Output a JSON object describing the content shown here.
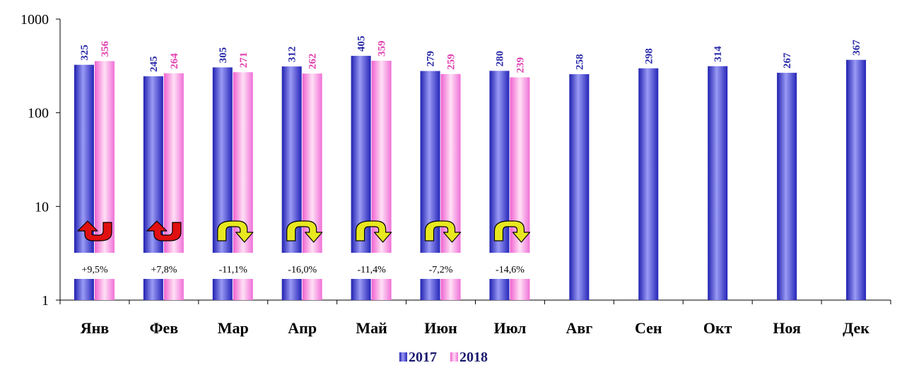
{
  "chart_data": {
    "type": "bar",
    "y_scale": "log",
    "ylim": [
      1,
      1000
    ],
    "y_ticks": [
      "1",
      "10",
      "100",
      "1000"
    ],
    "categories": [
      "Янв",
      "Фев",
      "Мар",
      "Апр",
      "Май",
      "Июн",
      "Июл",
      "Авг",
      "Сен",
      "Окт",
      "Ноя",
      "Дек"
    ],
    "series": [
      {
        "name": "2017",
        "color": "#3a3adf",
        "values": [
          325,
          245,
          305,
          312,
          405,
          279,
          280,
          258,
          298,
          314,
          267,
          367
        ]
      },
      {
        "name": "2018",
        "color": "#f090e0",
        "values": [
          356,
          264,
          271,
          262,
          359,
          259,
          239,
          null,
          null,
          null,
          null,
          null
        ]
      }
    ],
    "annotations": [
      {
        "text": "+9,5%",
        "arrow": "up-red"
      },
      {
        "text": "+7,8%",
        "arrow": "up-red"
      },
      {
        "text": "-11,1%",
        "arrow": "down-yellow"
      },
      {
        "text": "-16,0%",
        "arrow": "down-yellow"
      },
      {
        "text": "-11,4%",
        "arrow": "down-yellow"
      },
      {
        "text": "-7,2%",
        "arrow": "down-yellow"
      },
      {
        "text": "-14,6%",
        "arrow": "down-yellow"
      }
    ],
    "label_colors": {
      "2017": "#2a2aa8",
      "2018": "#e040b0"
    },
    "arrow_colors": {
      "up": "#e01010",
      "down": "#e8e820"
    },
    "legend_position": "bottom-center",
    "grid": false
  }
}
